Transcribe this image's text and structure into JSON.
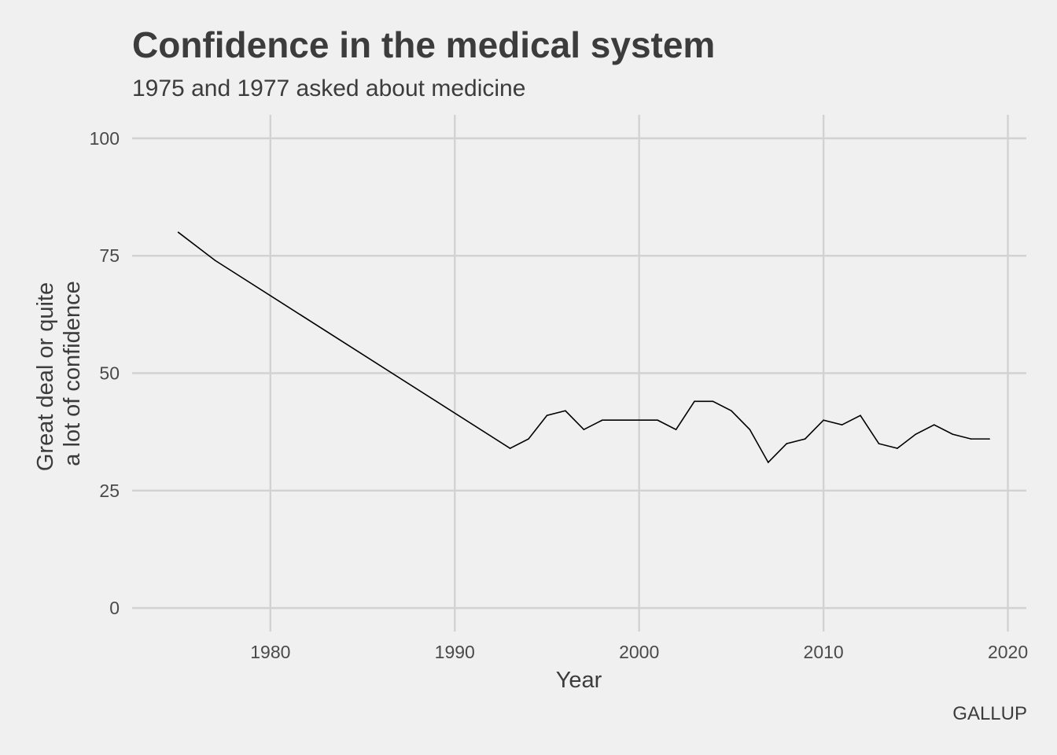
{
  "chart_data": {
    "type": "line",
    "title": "Confidence in the medical system",
    "subtitle": "1975 and 1977 asked about medicine",
    "caption": "GALLUP",
    "xlabel": "Year",
    "ylabel_lines": [
      "Great deal or quite",
      "a lot of confidence"
    ],
    "xlim": [
      1972.5,
      2021
    ],
    "ylim": [
      -5,
      105
    ],
    "x_ticks": [
      1980,
      1990,
      2000,
      2010,
      2020
    ],
    "y_ticks": [
      0,
      25,
      50,
      75,
      100
    ],
    "grid": true,
    "line_color": "#000000",
    "grid_color": "#d2d2d2",
    "background": "#f0f0f0",
    "series": [
      {
        "x": [
          1975,
          1977,
          1993,
          1994,
          1995,
          1996,
          1997,
          1998,
          1999,
          2000,
          2001,
          2002,
          2003,
          2004,
          2005,
          2006,
          2007,
          2008,
          2009,
          2010,
          2011,
          2012,
          2013,
          2014,
          2015,
          2016,
          2017,
          2018,
          2019
        ],
        "y": [
          80,
          74,
          34,
          36,
          41,
          42,
          38,
          40,
          40,
          40,
          40,
          38,
          44,
          44,
          42,
          38,
          31,
          35,
          36,
          40,
          39,
          41,
          35,
          34,
          37,
          39,
          37,
          36,
          36
        ]
      }
    ]
  }
}
